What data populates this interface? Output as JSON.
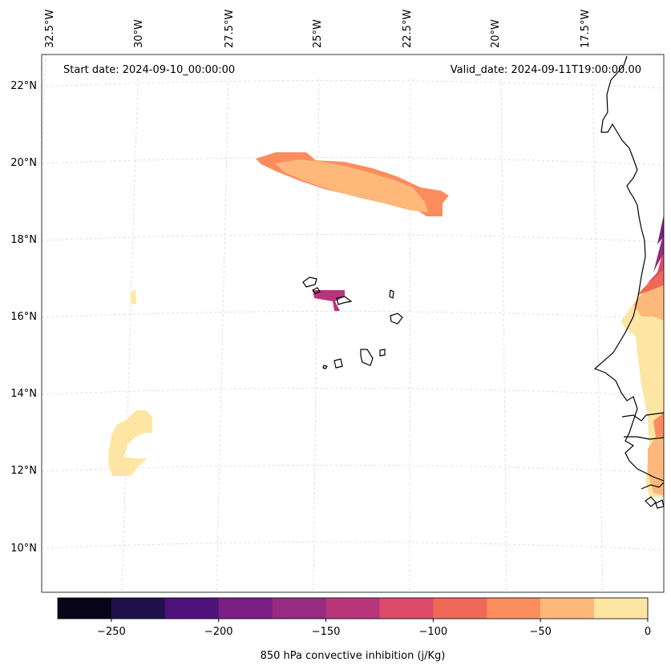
{
  "header": {
    "start_date": "Start date: 2024-09-10_00:00:00",
    "valid_date": "Valid_date: 2024-09-11T19:00:00.00"
  },
  "axes": {
    "lon_labels": [
      "32.5°W",
      "30°W",
      "27.5°W",
      "25°W",
      "22.5°W",
      "20°W",
      "17.5°W"
    ],
    "lat_labels": [
      "22°N",
      "20°N",
      "18°N",
      "16°N",
      "14°N",
      "12°N",
      "10°N"
    ],
    "gridlines": true
  },
  "colorbar": {
    "label": "850 hPa convective inhibition (j/Kg)",
    "tick_labels": [
      "−250",
      "−200",
      "−150",
      "−100",
      "−50",
      "0"
    ],
    "range": [
      -275,
      0
    ],
    "step": 25,
    "colors": [
      "#06051a",
      "#20114b",
      "#4f127b",
      "#7a1f81",
      "#962b7f",
      "#b8357a",
      "#dd4a68",
      "#f06858",
      "#fb8c5e",
      "#fdb87a",
      "#fde6a3"
    ]
  },
  "colors": {
    "coastline": "#000000",
    "gridline": "#d9d9d9"
  }
}
